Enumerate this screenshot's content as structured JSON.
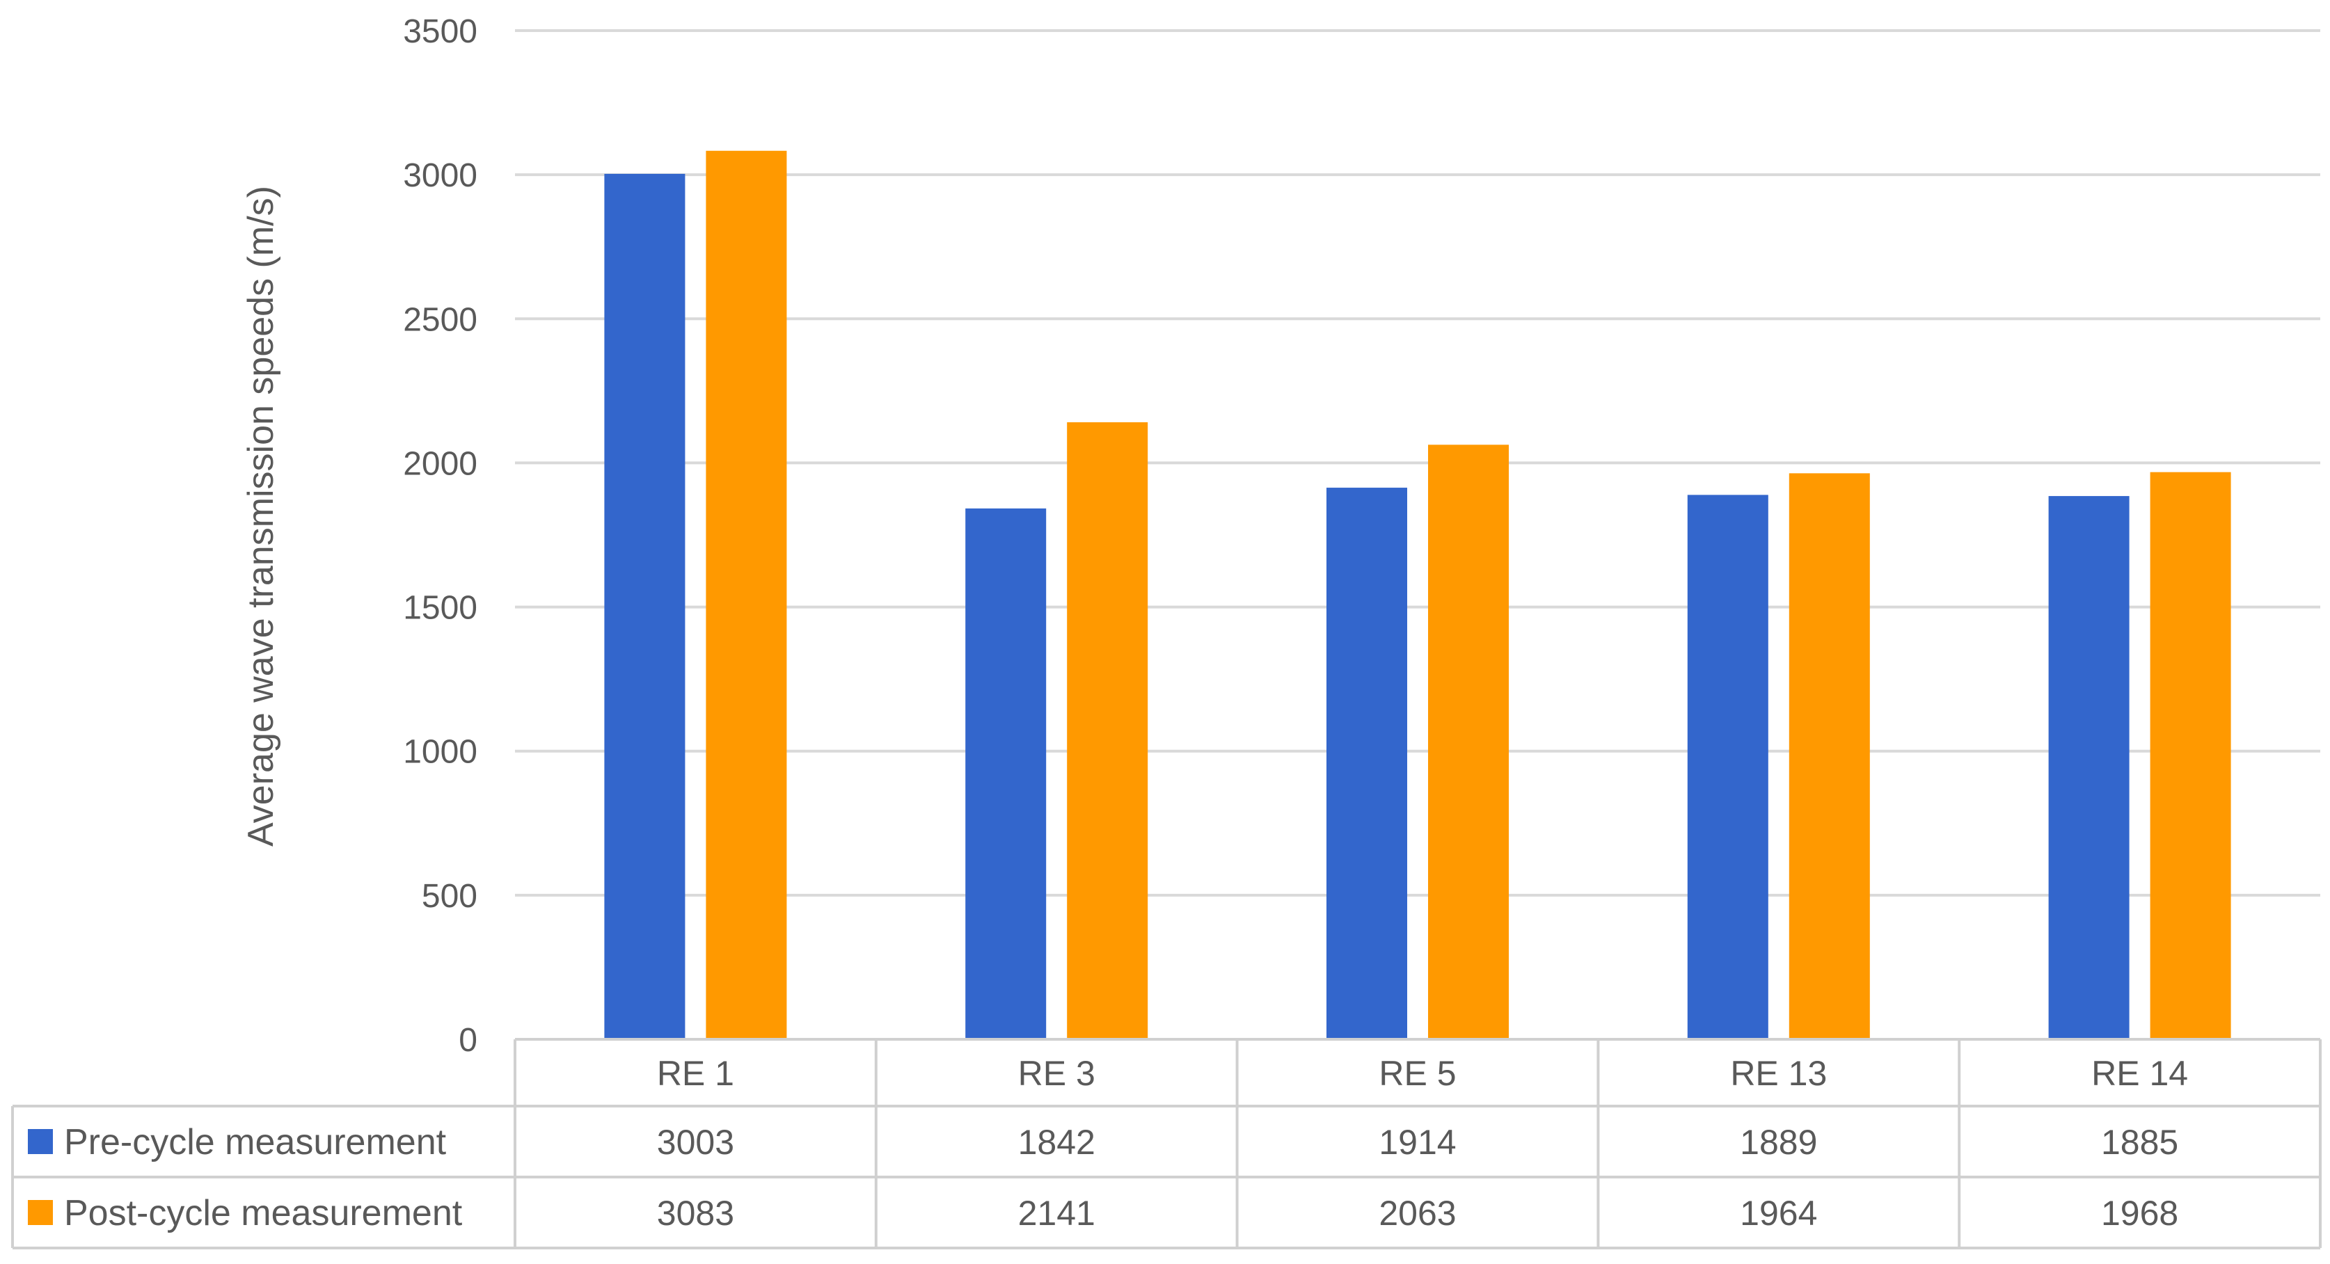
{
  "chart_data": {
    "type": "bar",
    "categories": [
      "RE 1",
      "RE 3",
      "RE 5",
      "RE 13",
      "RE 14"
    ],
    "series": [
      {
        "name": "Pre-cycle measurement",
        "values": [
          3003,
          1842,
          1914,
          1889,
          1885
        ],
        "color": "#3366cc"
      },
      {
        "name": "Post-cycle measurement",
        "values": [
          3083,
          2141,
          2063,
          1964,
          1968
        ],
        "color": "#ff9900"
      }
    ],
    "title": "",
    "xlabel": "",
    "ylabel": "Average wave transmission speeds (m/s)",
    "ylim": [
      0,
      3500
    ],
    "yticks": [
      0,
      500,
      1000,
      1500,
      2000,
      2500,
      3000,
      3500
    ],
    "grid": true,
    "legend": "data-table-rows"
  }
}
